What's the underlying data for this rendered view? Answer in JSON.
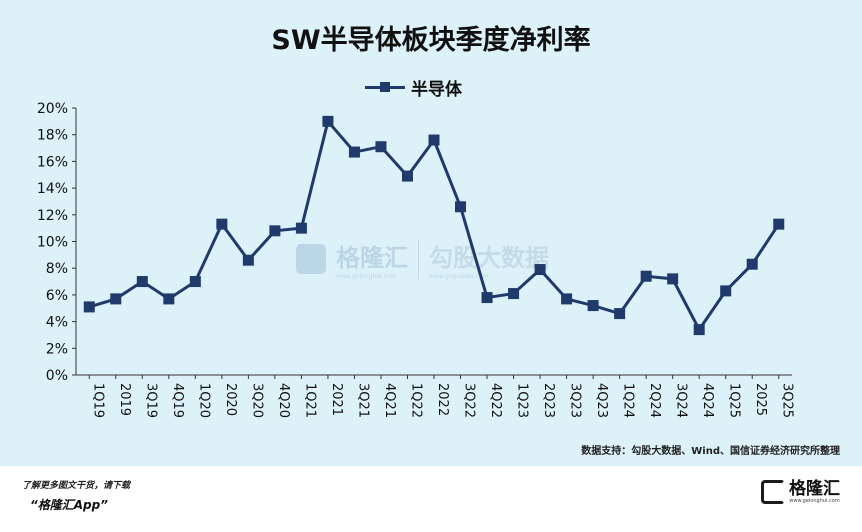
{
  "title": "SW半导体板块季度净利率",
  "legend": {
    "label": "半导体"
  },
  "source": "数据支持：勾股大数据、Wind、国信证券经济研究所整理",
  "watermark": {
    "brand": "格隆汇",
    "brand_url": "www.gelonghui.com",
    "partner": "勾股大数据",
    "partner_url": "www.gogudata.com"
  },
  "footer": {
    "line1": "了解更多图文干货，请下载",
    "line2": "“格隆汇App”",
    "logo_text": "格隆汇",
    "logo_sub": "www.gelonghui.com"
  },
  "colors": {
    "series": "#1f3a6b",
    "background": "#ddf1f8"
  },
  "chart_data": {
    "type": "line",
    "title": "SW半导体板块季度净利率",
    "categories": [
      "1Q19",
      "2019",
      "3Q19",
      "4Q19",
      "1Q20",
      "2020",
      "3Q20",
      "4Q20",
      "1Q21",
      "2021",
      "3Q21",
      "4Q21",
      "1Q22",
      "2022",
      "3Q22",
      "4Q22",
      "1Q23",
      "2Q23",
      "3Q23",
      "4Q23",
      "1Q24",
      "2Q24",
      "3Q24",
      "4Q24",
      "1Q25",
      "2025",
      "3Q25"
    ],
    "series": [
      {
        "name": "半导体",
        "values": [
          5.1,
          5.7,
          7.0,
          5.7,
          7.0,
          11.3,
          8.6,
          10.8,
          11.0,
          19.0,
          16.7,
          17.1,
          14.9,
          17.6,
          12.6,
          5.8,
          6.1,
          7.9,
          5.7,
          5.2,
          4.6,
          7.4,
          7.2,
          3.4,
          6.3,
          8.3,
          11.3
        ]
      }
    ],
    "y_ticks": [
      "0%",
      "2%",
      "4%",
      "6%",
      "8%",
      "10%",
      "12%",
      "14%",
      "16%",
      "18%",
      "20%"
    ],
    "ylim": [
      0,
      20
    ],
    "legend_position": "top-center",
    "grid": false
  }
}
